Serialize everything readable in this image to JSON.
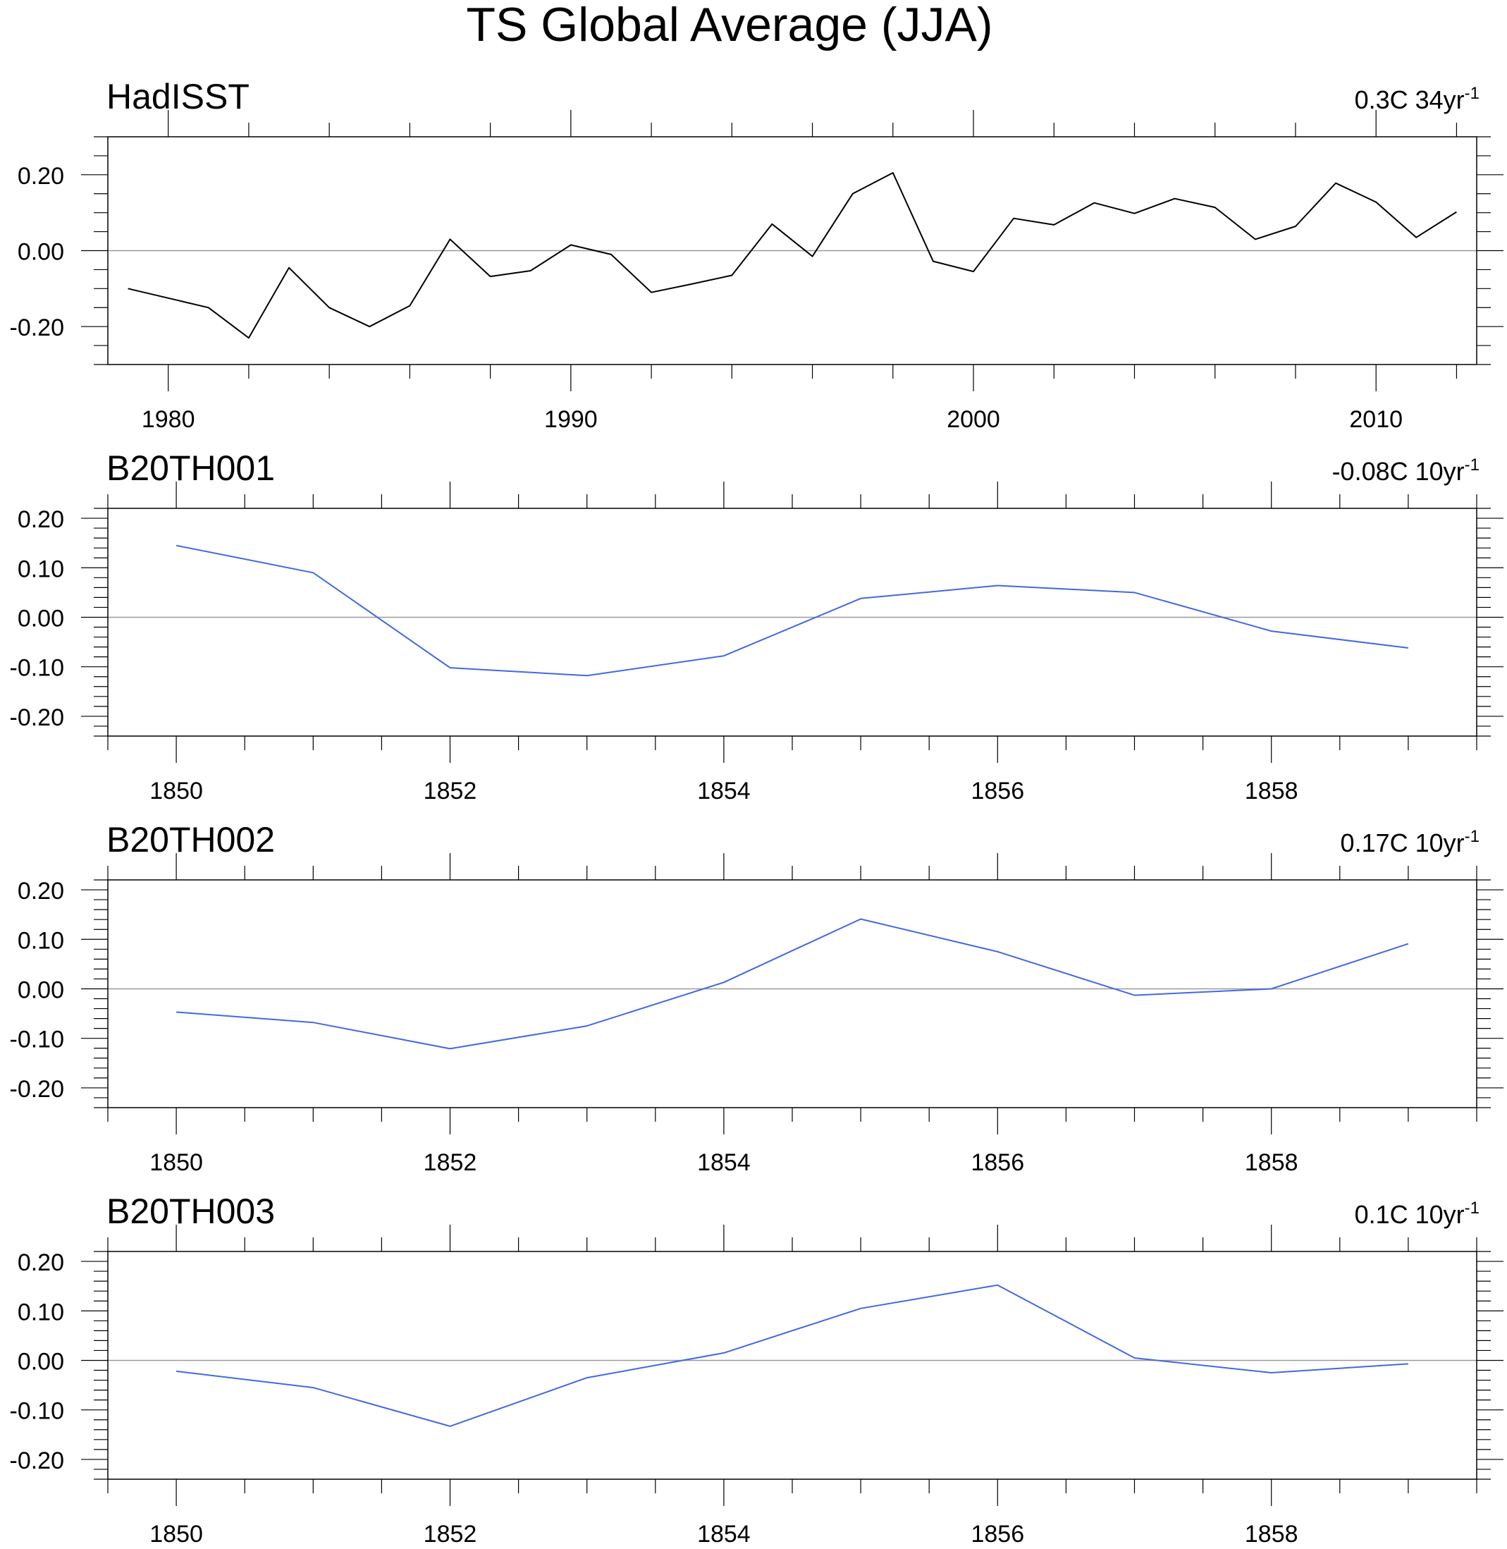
{
  "figure": {
    "title": "TS Global Average (JJA)"
  },
  "chart_data": [
    {
      "type": "line",
      "title": "HadISST",
      "trend_label": {
        "text": "0.3C 34yr",
        "exponent": "-1"
      },
      "line_color": "#000000",
      "zero_line": true,
      "xlim": [
        1978.5,
        2012.5
      ],
      "ylim": [
        -0.3,
        0.3
      ],
      "x_major_ticks": [
        1980,
        1990,
        2000,
        2010
      ],
      "x_tick_labels": [
        "1980",
        "1990",
        "2000",
        "2010"
      ],
      "x_minor_step": 2,
      "y_major_ticks": [
        -0.2,
        0.0,
        0.2
      ],
      "y_tick_labels": [
        "-0.20",
        "0.00",
        "0.20"
      ],
      "y_minor_step": 0.05,
      "x": [
        1979,
        1980,
        1981,
        1982,
        1983,
        1984,
        1985,
        1986,
        1987,
        1988,
        1989,
        1990,
        1991,
        1992,
        1993,
        1994,
        1995,
        1996,
        1997,
        1998,
        1999,
        2000,
        2001,
        2002,
        2003,
        2004,
        2005,
        2006,
        2007,
        2008,
        2009,
        2010,
        2011,
        2012
      ],
      "y": [
        -0.1,
        -0.125,
        -0.15,
        -0.23,
        -0.045,
        -0.15,
        -0.2,
        -0.145,
        0.03,
        -0.068,
        -0.053,
        0.015,
        -0.01,
        -0.11,
        -0.088,
        -0.065,
        0.07,
        -0.015,
        0.15,
        0.205,
        -0.028,
        -0.055,
        0.085,
        0.068,
        0.126,
        0.098,
        0.137,
        0.114,
        0.03,
        0.064,
        0.178,
        0.128,
        0.035,
        0.102
      ]
    },
    {
      "type": "line",
      "title": "B20TH001",
      "trend_label": {
        "text": "-0.08C 10yr",
        "exponent": "-1"
      },
      "line_color": "#4169e1",
      "zero_line": true,
      "xlim": [
        1849.5,
        1859.5
      ],
      "ylim": [
        -0.24,
        0.22
      ],
      "x_major_ticks": [
        1850,
        1852,
        1854,
        1856,
        1858
      ],
      "x_tick_labels": [
        "1850",
        "1852",
        "1854",
        "1856",
        "1858"
      ],
      "x_minor_step": 0.5,
      "y_major_ticks": [
        -0.2,
        -0.1,
        0.0,
        0.1,
        0.2
      ],
      "y_tick_labels": [
        "-0.20",
        "-0.10",
        "0.00",
        "0.10",
        "0.20"
      ],
      "y_minor_step": 0.02,
      "x": [
        1850,
        1851,
        1852,
        1853,
        1854,
        1855,
        1856,
        1857,
        1858,
        1859
      ],
      "y": [
        0.145,
        0.09,
        -0.102,
        -0.118,
        -0.078,
        0.038,
        0.064,
        0.05,
        -0.028,
        -0.062
      ]
    },
    {
      "type": "line",
      "title": "B20TH002",
      "trend_label": {
        "text": "0.17C 10yr",
        "exponent": "-1"
      },
      "line_color": "#4169e1",
      "zero_line": true,
      "xlim": [
        1849.5,
        1859.5
      ],
      "ylim": [
        -0.24,
        0.22
      ],
      "x_major_ticks": [
        1850,
        1852,
        1854,
        1856,
        1858
      ],
      "x_tick_labels": [
        "1850",
        "1852",
        "1854",
        "1856",
        "1858"
      ],
      "x_minor_step": 0.5,
      "y_major_ticks": [
        -0.2,
        -0.1,
        0.0,
        0.1,
        0.2
      ],
      "y_tick_labels": [
        "-0.20",
        "-0.10",
        "0.00",
        "0.10",
        "0.20"
      ],
      "y_minor_step": 0.02,
      "x": [
        1850,
        1851,
        1852,
        1853,
        1854,
        1855,
        1856,
        1857,
        1858,
        1859
      ],
      "y": [
        -0.047,
        -0.068,
        -0.121,
        -0.075,
        0.013,
        0.141,
        0.075,
        -0.013,
        0.0,
        0.091
      ]
    },
    {
      "type": "line",
      "title": "B20TH003",
      "trend_label": {
        "text": "0.1C 10yr",
        "exponent": "-1"
      },
      "line_color": "#4169e1",
      "zero_line": true,
      "xlim": [
        1849.5,
        1859.5
      ],
      "ylim": [
        -0.24,
        0.22
      ],
      "x_major_ticks": [
        1850,
        1852,
        1854,
        1856,
        1858
      ],
      "x_tick_labels": [
        "1850",
        "1852",
        "1854",
        "1856",
        "1858"
      ],
      "x_minor_step": 0.5,
      "y_major_ticks": [
        -0.2,
        -0.1,
        0.0,
        0.1,
        0.2
      ],
      "y_tick_labels": [
        "-0.20",
        "-0.10",
        "0.00",
        "0.10",
        "0.20"
      ],
      "y_minor_step": 0.02,
      "x": [
        1850,
        1851,
        1852,
        1853,
        1854,
        1855,
        1856,
        1857,
        1858,
        1859
      ],
      "y": [
        -0.022,
        -0.055,
        -0.133,
        -0.035,
        0.015,
        0.105,
        0.152,
        0.005,
        -0.025,
        -0.007
      ]
    }
  ]
}
